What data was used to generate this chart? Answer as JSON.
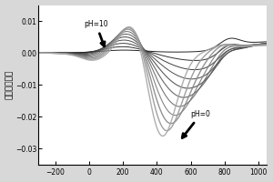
{
  "ylabel": "电流（毫安）",
  "xlim": [
    -300,
    1050
  ],
  "ylim": [
    -0.035,
    0.015
  ],
  "yticks": [
    -0.03,
    -0.02,
    -0.01,
    0.0,
    0.01
  ],
  "xticks": [
    -200,
    0,
    200,
    400,
    600,
    800,
    1000
  ],
  "bg_color": "#d8d8d8",
  "plot_bg_color": "#ffffff",
  "n_curves": 11,
  "ph_min": 0,
  "ph_max": 10
}
